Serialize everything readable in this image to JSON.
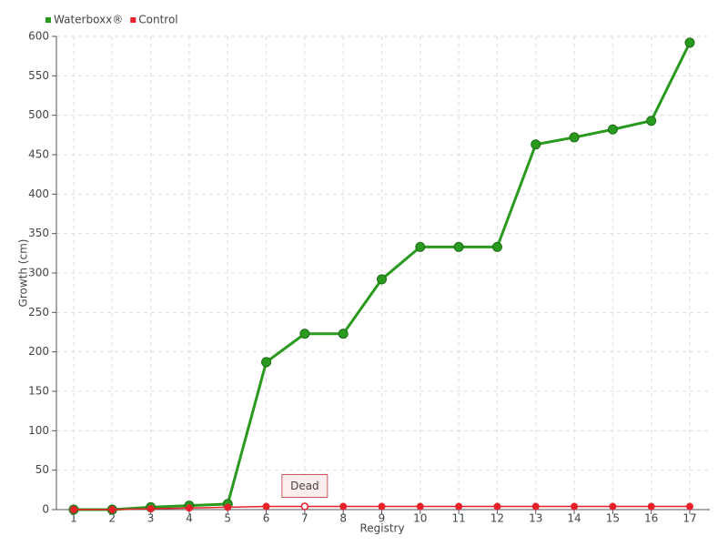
{
  "chart_data": {
    "type": "line",
    "x_label": "Registry",
    "y_label": "Growth (cm)",
    "categories": [
      "1",
      "2",
      "3",
      "4",
      "5",
      "6",
      "7",
      "8",
      "9",
      "10",
      "11",
      "12",
      "13",
      "14",
      "15",
      "16",
      "17"
    ],
    "series": [
      {
        "name": "Waterboxx®",
        "color": "#2a9a1f",
        "values": [
          0,
          0,
          3,
          5,
          7,
          187,
          223,
          223,
          292,
          333,
          333,
          333,
          463,
          472,
          482,
          493,
          592
        ]
      },
      {
        "name": "Control",
        "color": "#e8202a",
        "values": [
          0,
          0,
          1,
          2,
          3,
          4,
          4,
          4,
          4,
          4,
          4,
          4,
          4,
          4,
          4,
          4,
          4
        ]
      }
    ],
    "ylim": [
      0,
      600
    ],
    "yticks": [
      0,
      50,
      100,
      150,
      200,
      250,
      300,
      350,
      400,
      450,
      500,
      550,
      600
    ],
    "grid": true,
    "legend": "top-left",
    "annotations": [
      {
        "text": "Dead",
        "x": "7",
        "series": "Control"
      }
    ]
  }
}
